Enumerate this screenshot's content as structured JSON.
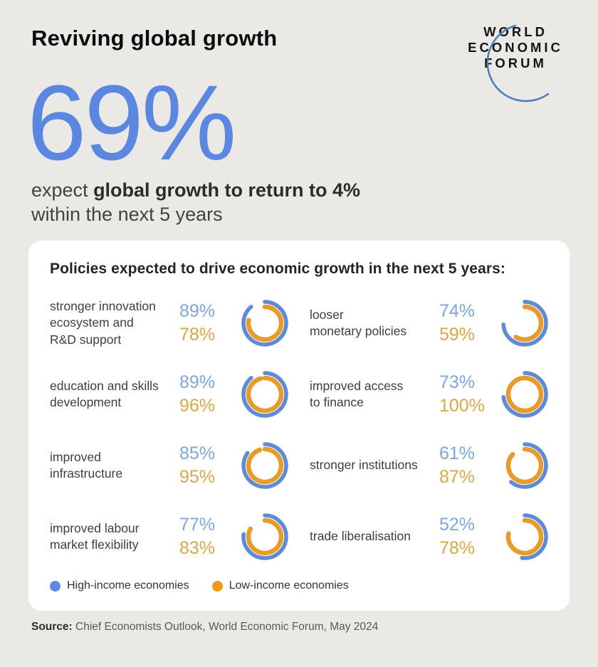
{
  "page_title": "Reviving global growth",
  "logo": {
    "lines": [
      "WORLD",
      "ECONOMIC",
      "FORUM"
    ],
    "swoosh_color": "#4d7fbe"
  },
  "hero": {
    "stat": "69%",
    "line1_regular": "expect ",
    "line1_bold": "global growth to return to 4%",
    "line2": "within the next 5 years"
  },
  "card": {
    "title": "Policies expected to drive economic growth in the next 5 years:",
    "items": [
      {
        "label": "stronger innovation\necosystem and\nR&D support",
        "high": 89,
        "low": 78
      },
      {
        "label": "looser\nmonetary policies",
        "high": 74,
        "low": 59
      },
      {
        "label": "education and skills\ndevelopment",
        "high": 89,
        "low": 96
      },
      {
        "label": "improved access\nto finance",
        "high": 73,
        "low": 100
      },
      {
        "label": "improved\ninfrastructure",
        "high": 85,
        "low": 95
      },
      {
        "label": "stronger institutions",
        "high": 61,
        "low": 87
      },
      {
        "label": "improved labour\nmarket flexibility",
        "high": 77,
        "low": 83
      },
      {
        "label": "trade liberalisation",
        "high": 52,
        "low": 78
      }
    ],
    "legend": [
      {
        "label": "High-income economies",
        "color": "#5b8ade"
      },
      {
        "label": "Low-income economies",
        "color": "#f0991f"
      }
    ]
  },
  "source": {
    "label": "Source:",
    "text": " Chief Economists Outlook, World Economic Forum, May 2024"
  },
  "colors": {
    "background": "#ebe9e6",
    "card_background": "#ffffff",
    "accent_blue": "#5c87e0",
    "high_arc": "#5e8bd4",
    "low_arc": "#e69b2c",
    "high_text": "#7fa6d8",
    "low_text": "#d7a74c"
  },
  "chart_data": {
    "type": "pie",
    "subtype": "paired-donut-grid",
    "title": "Policies expected to drive economic growth in the next 5 years:",
    "unit": "%",
    "categories": [
      "stronger innovation ecosystem and R&D support",
      "looser monetary policies",
      "education and skills development",
      "improved access to finance",
      "improved infrastructure",
      "stronger institutions",
      "improved labour market flexibility",
      "trade liberalisation"
    ],
    "series": [
      {
        "name": "High-income economies",
        "color": "#5e8bd4",
        "ring": "outer",
        "values": [
          89,
          74,
          89,
          73,
          85,
          61,
          77,
          52
        ]
      },
      {
        "name": "Low-income economies",
        "color": "#e69b2c",
        "ring": "inner",
        "values": [
          78,
          59,
          96,
          100,
          95,
          87,
          83,
          78
        ]
      }
    ],
    "value_range": [
      0,
      100
    ],
    "arc_start": "12 o'clock, clockwise sweep proportional to value",
    "legend_position": "bottom-left",
    "headline_stat": {
      "value": 69,
      "unit": "%",
      "caption": "expect global growth to return to 4% within the next 5 years"
    }
  }
}
